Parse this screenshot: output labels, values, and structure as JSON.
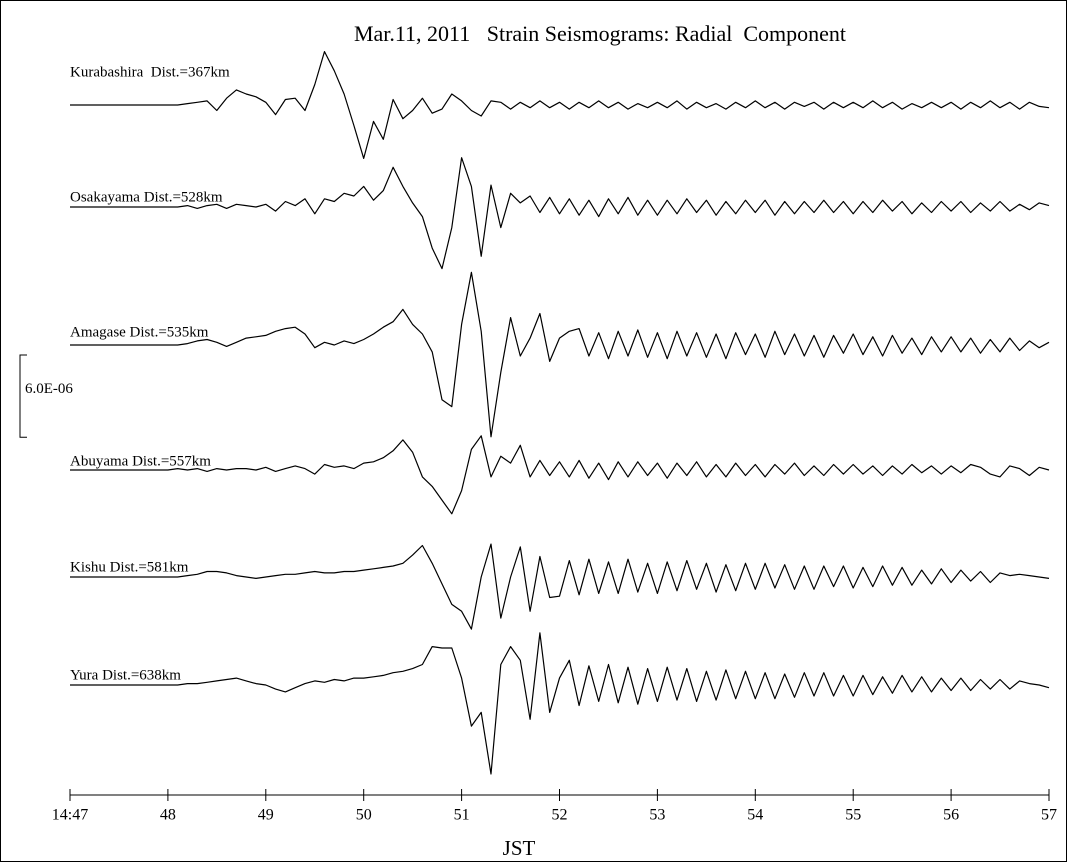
{
  "chart_data": {
    "type": "line",
    "title": "Mar.11, 2011   Strain Seismograms: Radial  Component",
    "xlabel": "JST",
    "xlim": [
      47,
      57
    ],
    "xticks": [
      {
        "value": 47,
        "label": "14:47"
      },
      48,
      49,
      50,
      51,
      52,
      53,
      54,
      55,
      56,
      57
    ],
    "scale_bar": {
      "value": 6e-06,
      "label": "6.0E-06"
    },
    "x": [
      47,
      47.1,
      47.2,
      47.3,
      47.4,
      47.5,
      47.6,
      47.7,
      47.8,
      47.9,
      48,
      48.1,
      48.2,
      48.3,
      48.4,
      48.5,
      48.6,
      48.7,
      48.8,
      48.9,
      49,
      49.1,
      49.2,
      49.3,
      49.4,
      49.5,
      49.6,
      49.7,
      49.8,
      49.9,
      50,
      50.1,
      50.2,
      50.3,
      50.4,
      50.5,
      50.6,
      50.7,
      50.8,
      50.9,
      51,
      51.1,
      51.2,
      51.3,
      51.4,
      51.5,
      51.6,
      51.7,
      51.8,
      51.9,
      52,
      52.1,
      52.2,
      52.3,
      52.4,
      52.5,
      52.6,
      52.7,
      52.8,
      52.9,
      53,
      53.1,
      53.2,
      53.3,
      53.4,
      53.5,
      53.6,
      53.7,
      53.8,
      53.9,
      54,
      54.1,
      54.2,
      54.3,
      54.4,
      54.5,
      54.6,
      54.7,
      54.8,
      54.9,
      55,
      55.1,
      55.2,
      55.3,
      55.4,
      55.5,
      55.6,
      55.7,
      55.8,
      55.9,
      56,
      56.1,
      56.2,
      56.3,
      56.4,
      56.5,
      56.6,
      56.7,
      56.8,
      56.9,
      57
    ],
    "series": [
      {
        "name": "Kurabashira  Dist.=367km",
        "color": "#000000",
        "values": [
          0,
          0,
          0,
          0,
          0,
          0,
          0,
          0,
          0,
          0,
          0,
          0,
          1e-07,
          2e-07,
          3e-07,
          -4e-07,
          5e-07,
          1.1e-06,
          8e-07,
          6e-07,
          2e-07,
          -7e-07,
          4e-07,
          5e-07,
          -4e-07,
          1.5e-06,
          3.9e-06,
          2.5e-06,
          8e-07,
          -1.5e-06,
          -3.9e-06,
          -1.2e-06,
          -2.5e-06,
          4e-07,
          -1e-06,
          -4e-07,
          5e-07,
          -6e-07,
          -3e-07,
          8e-07,
          3e-07,
          -4e-07,
          -8e-07,
          3e-07,
          2e-07,
          -3e-07,
          2e-07,
          -2e-07,
          3e-07,
          -2e-07,
          2e-07,
          -3e-07,
          2e-07,
          -2e-07,
          3e-07,
          -2e-07,
          2e-07,
          -3e-07,
          1e-07,
          -2e-07,
          2e-07,
          -2e-07,
          3e-07,
          -3e-07,
          2e-07,
          -2e-07,
          1e-07,
          -3e-07,
          2e-07,
          -2e-07,
          3e-07,
          -2e-07,
          2e-07,
          -3e-07,
          2e-07,
          -1e-07,
          2e-07,
          -3e-07,
          2e-07,
          -2e-07,
          2e-07,
          -2e-07,
          3e-07,
          -2e-07,
          2e-07,
          -3e-07,
          1e-07,
          -2e-07,
          2e-07,
          -2e-07,
          2e-07,
          -3e-07,
          2e-07,
          -2e-07,
          3e-07,
          -2e-07,
          2e-07,
          -3e-07,
          2e-07,
          -1e-07,
          -2e-07
        ]
      },
      {
        "name": "Osakayama Dist.=528km",
        "color": "#000000",
        "values": [
          0,
          0,
          0,
          0,
          0,
          0,
          0,
          0,
          0,
          0,
          0,
          0,
          1e-07,
          -1e-07,
          1e-07,
          2e-07,
          -1e-07,
          2e-07,
          1e-07,
          0,
          2e-07,
          -3e-07,
          4e-07,
          1e-07,
          6e-07,
          -5e-07,
          6e-07,
          4e-07,
          1e-06,
          8e-07,
          1.5e-06,
          5e-07,
          1.2e-06,
          2.9e-06,
          1.5e-06,
          3e-07,
          -7e-07,
          -3e-06,
          -4.5e-06,
          -1.5e-06,
          3.6e-06,
          1.5e-06,
          -3.6e-06,
          1.6e-06,
          -1.5e-06,
          1e-06,
          3e-07,
          8e-07,
          -4e-07,
          7e-07,
          -5e-07,
          6e-07,
          -6e-07,
          5e-07,
          -7e-07,
          6e-07,
          -5e-07,
          7e-07,
          -6e-07,
          5e-07,
          -6e-07,
          5e-07,
          -5e-07,
          6e-07,
          -4e-07,
          5e-07,
          -6e-07,
          4e-07,
          -5e-07,
          5e-07,
          -4e-07,
          5e-07,
          -6e-07,
          4e-07,
          -5e-07,
          4e-07,
          -4e-07,
          5e-07,
          -4e-07,
          4e-07,
          -5e-07,
          4e-07,
          -4e-07,
          5e-07,
          -3e-07,
          4e-07,
          -5e-07,
          3e-07,
          -4e-07,
          4e-07,
          -3e-07,
          4e-07,
          -4e-07,
          3e-07,
          -3e-07,
          4e-07,
          -3e-07,
          2e-07,
          -2e-07,
          3e-07,
          1e-07
        ]
      },
      {
        "name": "Amagase Dist.=535km",
        "color": "#000000",
        "values": [
          0,
          0,
          0,
          0,
          0,
          0,
          0,
          0,
          0,
          0,
          0,
          0,
          1e-07,
          3e-07,
          4e-07,
          2e-07,
          -1e-07,
          2e-07,
          5e-07,
          6e-07,
          7e-07,
          1e-06,
          1.2e-06,
          1.3e-06,
          8e-07,
          -2e-07,
          2e-07,
          0,
          3e-07,
          1e-07,
          4e-07,
          8e-07,
          1.3e-06,
          1.7e-06,
          2.6e-06,
          1.5e-06,
          8e-07,
          -5e-07,
          -4e-06,
          -4.5e-06,
          1.5e-06,
          5.3e-06,
          1e-06,
          -6.7e-06,
          -2e-06,
          2e-06,
          -8e-07,
          5e-07,
          2.3e-06,
          -1.2e-06,
          5e-07,
          1e-06,
          1.2e-06,
          -8e-07,
          9e-07,
          -1e-06,
          1e-06,
          -8e-07,
          1.1e-06,
          -9e-07,
          9e-07,
          -1e-06,
          1e-06,
          -8e-07,
          9e-07,
          -9e-07,
          8e-07,
          -1e-06,
          9e-07,
          -7e-07,
          8e-07,
          -9e-07,
          1e-06,
          -7e-07,
          8e-07,
          -8e-07,
          7e-07,
          -9e-07,
          7e-07,
          -6e-07,
          8e-07,
          -7e-07,
          6e-07,
          -8e-07,
          7e-07,
          -6e-07,
          5e-07,
          -7e-07,
          6e-07,
          -5e-07,
          6e-07,
          -5e-07,
          5e-07,
          -6e-07,
          4e-07,
          -5e-07,
          5e-07,
          -4e-07,
          3e-07,
          -2e-07,
          2e-07
        ]
      },
      {
        "name": "Abuyama Dist.=557km",
        "color": "#000000",
        "values": [
          0,
          0,
          0,
          0,
          0,
          0,
          0,
          0,
          0,
          0,
          0,
          1e-07,
          0,
          1e-07,
          -1e-07,
          1e-07,
          0,
          1e-07,
          1e-07,
          0,
          2e-07,
          -1e-07,
          1e-07,
          3e-07,
          1e-07,
          -3e-07,
          4e-07,
          2e-07,
          3e-07,
          1e-07,
          5e-07,
          6e-07,
          9e-07,
          1.4e-06,
          2.2e-06,
          1.3e-06,
          -5e-07,
          -1.2e-06,
          -2.2e-06,
          -3.2e-06,
          -1.5e-06,
          1.5e-06,
          2.5e-06,
          -5e-07,
          1e-06,
          5e-07,
          1.8e-06,
          -5e-07,
          7e-07,
          -4e-07,
          6e-07,
          -5e-07,
          7e-07,
          -6e-07,
          5e-07,
          -7e-07,
          6e-07,
          -5e-07,
          6e-07,
          -4e-07,
          5e-07,
          -6e-07,
          5e-07,
          -4e-07,
          6e-07,
          -5e-07,
          4e-07,
          -5e-07,
          5e-07,
          -4e-07,
          4e-07,
          -5e-07,
          4e-07,
          -3e-07,
          5e-07,
          -4e-07,
          3e-07,
          -4e-07,
          4e-07,
          -3e-07,
          4e-07,
          -3e-07,
          3e-07,
          -4e-07,
          3e-07,
          -3e-07,
          4e-07,
          -2e-07,
          3e-07,
          -3e-07,
          3e-07,
          -2e-07,
          4e-07,
          2e-07,
          -3e-07,
          -5e-07,
          3e-07,
          1e-07,
          -4e-07,
          2e-07,
          0
        ]
      },
      {
        "name": "Kishu Dist.=581km",
        "color": "#000000",
        "values": [
          0,
          0,
          0,
          0,
          0,
          0,
          0,
          0,
          0,
          0,
          0,
          0,
          1e-07,
          2e-07,
          4e-07,
          4e-07,
          3e-07,
          1e-07,
          0,
          -1e-07,
          0,
          1e-07,
          2e-07,
          2e-07,
          3e-07,
          4e-07,
          3e-07,
          3e-07,
          4e-07,
          4e-07,
          5e-07,
          6e-07,
          7e-07,
          8e-07,
          1e-06,
          1.6e-06,
          2.3e-06,
          1e-06,
          -5e-07,
          -2e-06,
          -2.5e-06,
          -3.8e-06,
          0,
          2.4e-06,
          -3e-06,
          0,
          2.2e-06,
          -2.5e-06,
          1.5e-06,
          -1.5e-06,
          -1.4e-06,
          1.2e-06,
          -1.3e-06,
          1.3e-06,
          -1.2e-06,
          1.1e-06,
          -1.2e-06,
          1.3e-06,
          -1.1e-06,
          1e-06,
          -1.2e-06,
          1.1e-06,
          -1e-06,
          1.2e-06,
          -9e-07,
          1e-06,
          -1.1e-06,
          9e-07,
          -1e-06,
          1e-06,
          -9e-07,
          1e-06,
          -8e-07,
          9e-07,
          -9e-07,
          8e-07,
          -9e-07,
          8e-07,
          -7e-07,
          8e-07,
          -8e-07,
          7e-07,
          -7e-07,
          8e-07,
          -6e-07,
          7e-07,
          -6e-07,
          5e-07,
          -5e-07,
          6e-07,
          -4e-07,
          5e-07,
          -3e-07,
          4e-07,
          -4e-07,
          3e-07,
          1e-07,
          2e-07,
          1e-07,
          0,
          -1e-07
        ]
      },
      {
        "name": "Yura Dist.=638km",
        "color": "#000000",
        "values": [
          0,
          0,
          0,
          0,
          0,
          0,
          0,
          0,
          0,
          0,
          0,
          0,
          1e-07,
          1e-07,
          2e-07,
          3e-07,
          4e-07,
          5e-07,
          3e-07,
          1e-07,
          0,
          -3e-07,
          -5e-07,
          -2e-07,
          1e-07,
          3e-07,
          2e-07,
          4e-07,
          3e-07,
          5e-07,
          5e-07,
          6e-07,
          7e-07,
          9e-07,
          1e-06,
          1.2e-06,
          1.5e-06,
          2.8e-06,
          2.7e-06,
          2.7e-06,
          5e-07,
          -3e-06,
          -2e-06,
          -6.5e-06,
          1.5e-06,
          2.8e-06,
          1.8e-06,
          -2.5e-06,
          3.8e-06,
          -2e-06,
          5e-07,
          1.8e-06,
          -1.5e-06,
          1.4e-06,
          -1.2e-06,
          1.5e-06,
          -1.3e-06,
          1.3e-06,
          -1.4e-06,
          1.2e-06,
          -1.2e-06,
          1.3e-06,
          -1.1e-06,
          1.2e-06,
          -1.2e-06,
          1e-06,
          -1.1e-06,
          1.1e-06,
          -1e-06,
          1e-06,
          -1e-06,
          9e-07,
          -1e-06,
          8e-07,
          -9e-07,
          9e-07,
          -8e-07,
          9e-07,
          -8e-07,
          7e-07,
          -8e-07,
          7e-07,
          -7e-07,
          6e-07,
          -6e-07,
          7e-07,
          -5e-07,
          6e-07,
          -5e-07,
          5e-07,
          -4e-07,
          5e-07,
          -4e-07,
          4e-07,
          -3e-07,
          4e-07,
          -3e-07,
          3e-07,
          1e-07,
          0,
          -2e-07
        ]
      }
    ]
  }
}
